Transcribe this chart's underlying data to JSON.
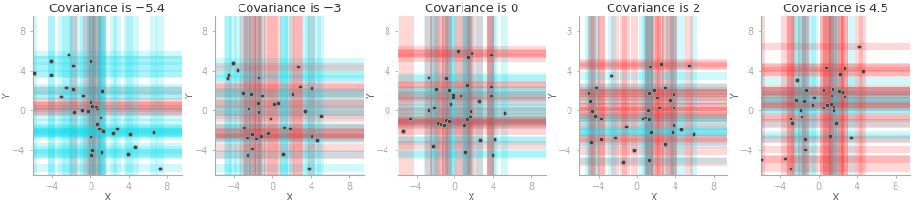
{
  "panels": [
    {
      "title": "Covariance is −5.4",
      "cov": -5.4
    },
    {
      "title": "Covariance is −3",
      "cov": -3
    },
    {
      "title": "Covariance is 0",
      "cov": 0
    },
    {
      "title": "Covariance is 2",
      "cov": 2
    },
    {
      "title": "Covariance is 4.5",
      "cov": 4.5
    }
  ],
  "xlim": [
    -6,
    9.5
  ],
  "ylim": [
    -6.5,
    9.5
  ],
  "xticks": [
    -4,
    0,
    4,
    8
  ],
  "yticks": [
    -4,
    0,
    4,
    8
  ],
  "xlabel": "X",
  "ylabel": "Y",
  "n_points": 35,
  "title_fontsize": 9.5,
  "label_fontsize": 8,
  "tick_fontsize": 7,
  "bg_color": "#ffffff",
  "point_color": "#404040",
  "point_edge_color": "#aaaaaa",
  "point_size": 10,
  "cyan_color": "#00ddee",
  "red_color": "#ff2222",
  "stripe_alpha": 0.18,
  "panel_seeds": [
    0,
    7,
    13,
    3,
    99
  ]
}
